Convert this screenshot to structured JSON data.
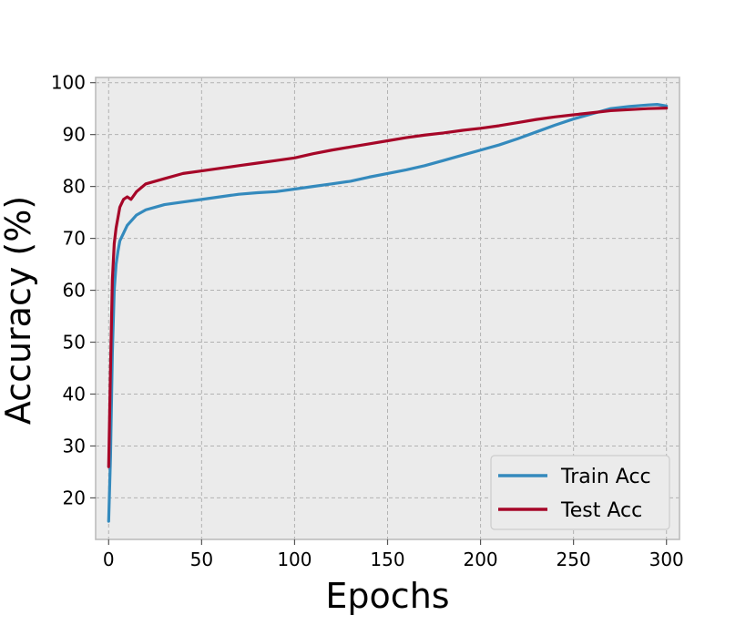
{
  "chart_data": {
    "type": "line",
    "title": "",
    "xlabel": "Epochs",
    "ylabel": "Accuracy (%)",
    "xlim": [
      -7,
      307
    ],
    "ylim": [
      12,
      101
    ],
    "xticks": [
      0,
      50,
      100,
      150,
      200,
      250,
      300
    ],
    "yticks": [
      20,
      30,
      40,
      50,
      60,
      70,
      80,
      90,
      100
    ],
    "grid": true,
    "legend_position": "bottom-right",
    "background_color": "#ebebeb",
    "series": [
      {
        "name": "Train Acc",
        "color": "#348abd",
        "x": [
          0,
          1,
          2,
          3,
          4,
          5,
          6,
          8,
          10,
          15,
          20,
          25,
          30,
          40,
          50,
          60,
          70,
          80,
          90,
          100,
          110,
          120,
          130,
          140,
          150,
          160,
          170,
          180,
          190,
          200,
          210,
          220,
          230,
          240,
          250,
          260,
          270,
          280,
          290,
          295,
          300
        ],
        "y": [
          15.5,
          28,
          48,
          60,
          65,
          67.5,
          69.5,
          71,
          72.5,
          74.5,
          75.5,
          76,
          76.5,
          77,
          77.5,
          78,
          78.5,
          78.8,
          79,
          79.5,
          80,
          80.5,
          81,
          81.8,
          82.5,
          83.2,
          84,
          85,
          86,
          87,
          88,
          89.2,
          90.5,
          91.8,
          93,
          94,
          95,
          95.4,
          95.7,
          95.8,
          95.5
        ]
      },
      {
        "name": "Test Acc",
        "color": "#a60628",
        "x": [
          0,
          1,
          2,
          3,
          4,
          5,
          6,
          8,
          10,
          12,
          15,
          20,
          25,
          30,
          40,
          50,
          60,
          70,
          80,
          90,
          100,
          110,
          120,
          130,
          140,
          150,
          160,
          170,
          180,
          190,
          200,
          210,
          220,
          230,
          240,
          250,
          260,
          270,
          280,
          290,
          300
        ],
        "y": [
          26,
          45,
          62,
          69,
          72,
          74,
          76,
          77.5,
          78,
          77.5,
          79,
          80.5,
          81,
          81.5,
          82.5,
          83,
          83.5,
          84,
          84.5,
          85,
          85.5,
          86.3,
          87,
          87.6,
          88.2,
          88.8,
          89.4,
          89.9,
          90.3,
          90.8,
          91.2,
          91.7,
          92.3,
          92.9,
          93.4,
          93.8,
          94.2,
          94.6,
          94.8,
          95,
          95.1
        ]
      }
    ]
  }
}
